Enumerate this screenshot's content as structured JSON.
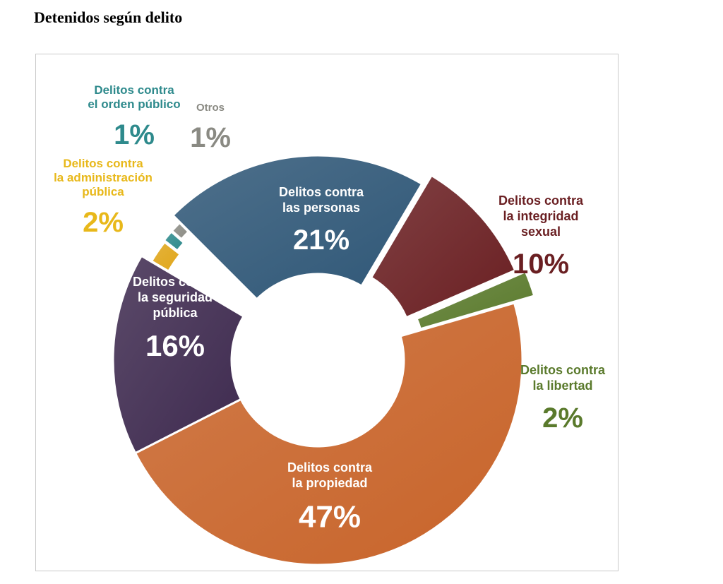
{
  "page": {
    "heading": "Detenidos según delito"
  },
  "chart_data": {
    "type": "pie",
    "title": "",
    "slices": [
      {
        "label_lines": [
          "Delitos contra",
          "las personas"
        ],
        "value": 21,
        "value_label": "21%",
        "color": "#2f5777",
        "exploded": false
      },
      {
        "label_lines": [
          "Delitos contra",
          "la integridad",
          "sexual"
        ],
        "value": 10,
        "value_label": "10%",
        "color": "#6a1f22",
        "exploded": true
      },
      {
        "label_lines": [
          "Delitos contra",
          "la libertad"
        ],
        "value": 2,
        "value_label": "2%",
        "color": "#5a7a2c",
        "exploded": true
      },
      {
        "label_lines": [
          "Delitos contra",
          "la propiedad"
        ],
        "value": 47,
        "value_label": "47%",
        "color": "#c8642a",
        "exploded": false
      },
      {
        "label_lines": [
          "Delitos contra",
          "la seguridad",
          "pública"
        ],
        "value": 16,
        "value_label": "16%",
        "color": "#3e2a4f",
        "exploded": false
      },
      {
        "label_lines": [
          "Delitos contra",
          "la administración",
          "pública"
        ],
        "value": 2,
        "value_label": "2%",
        "color": "#e0a61a",
        "exploded": true
      },
      {
        "label_lines": [
          "Delitos contra",
          "el orden público"
        ],
        "value": 1,
        "value_label": "1%",
        "color": "#2e8a8c",
        "exploded": true
      },
      {
        "label_lines": [
          "Otros"
        ],
        "value": 1,
        "value_label": "1%",
        "color": "#8d8d86",
        "exploded": true
      }
    ]
  },
  "colors": {
    "personas_label": "#ffffff",
    "integridad_label": "#6a1f22",
    "libertad_label": "#5a7a2c",
    "propiedad_label": "#ffffff",
    "seguridad_label": "#ffffff",
    "administracion_label": "#e8b81a",
    "orden_label": "#2e8a8c",
    "otros_label": "#8a8a83"
  }
}
